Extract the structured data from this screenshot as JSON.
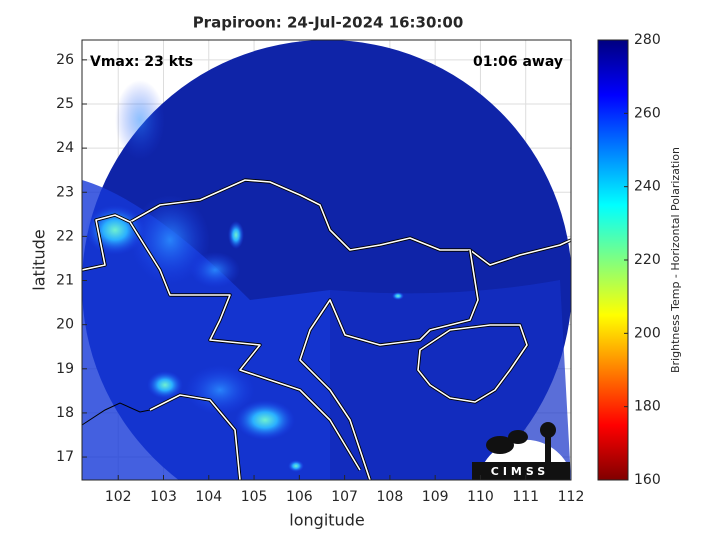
{
  "chart_data": {
    "type": "map",
    "title": "Prapiroon: 24-Jul-2024 16:30:00",
    "annotations": [
      "Vmax: 23 kts",
      "01:06 away"
    ],
    "xlabel": "longitude",
    "ylabel": "latitude",
    "xlim": [
      101.2,
      112
    ],
    "ylim": [
      16.48,
      26.45
    ],
    "xticks": [
      102,
      103,
      104,
      105,
      106,
      107,
      108,
      109,
      110,
      111,
      112
    ],
    "yticks": [
      17,
      18,
      19,
      20,
      21,
      22,
      23,
      24,
      25,
      26
    ],
    "grid": true,
    "colorbar": {
      "label": "Brightness Temp - Horizontal Polarization",
      "clim": [
        160,
        280
      ],
      "ticks": [
        160,
        180,
        200,
        220,
        240,
        260,
        280
      ],
      "colormap": "jet"
    },
    "logo": "CIMSS"
  }
}
